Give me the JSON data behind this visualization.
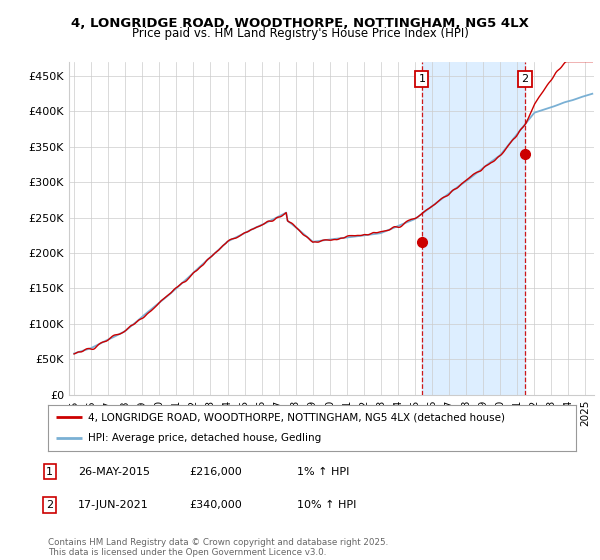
{
  "title_line1": "4, LONGRIDGE ROAD, WOODTHORPE, NOTTINGHAM, NG5 4LX",
  "title_line2": "Price paid vs. HM Land Registry's House Price Index (HPI)",
  "ylabel_ticks": [
    "£0",
    "£50K",
    "£100K",
    "£150K",
    "£200K",
    "£250K",
    "£300K",
    "£350K",
    "£400K",
    "£450K"
  ],
  "ytick_values": [
    0,
    50000,
    100000,
    150000,
    200000,
    250000,
    300000,
    350000,
    400000,
    450000
  ],
  "ylim": [
    0,
    470000
  ],
  "xlim_start": 1994.7,
  "xlim_end": 2025.5,
  "xticks": [
    1995,
    1996,
    1997,
    1998,
    1999,
    2000,
    2001,
    2002,
    2003,
    2004,
    2005,
    2006,
    2007,
    2008,
    2009,
    2010,
    2011,
    2012,
    2013,
    2014,
    2015,
    2016,
    2017,
    2018,
    2019,
    2020,
    2021,
    2022,
    2023,
    2024,
    2025
  ],
  "hpi_line_color": "#7ab0d4",
  "price_line_color": "#cc0000",
  "shade_color": "#ddeeff",
  "marker1_x": 2015.4,
  "marker1_y": 216000,
  "marker2_x": 2021.46,
  "marker2_y": 340000,
  "legend_label1": "4, LONGRIDGE ROAD, WOODTHORPE, NOTTINGHAM, NG5 4LX (detached house)",
  "legend_label2": "HPI: Average price, detached house, Gedling",
  "table_row1": [
    "1",
    "26-MAY-2015",
    "£216,000",
    "1% ↑ HPI"
  ],
  "table_row2": [
    "2",
    "17-JUN-2021",
    "£340,000",
    "10% ↑ HPI"
  ],
  "footer": "Contains HM Land Registry data © Crown copyright and database right 2025.\nThis data is licensed under the Open Government Licence v3.0.",
  "background_color": "#ffffff",
  "plot_bg_color": "#ffffff",
  "grid_color": "#cccccc"
}
